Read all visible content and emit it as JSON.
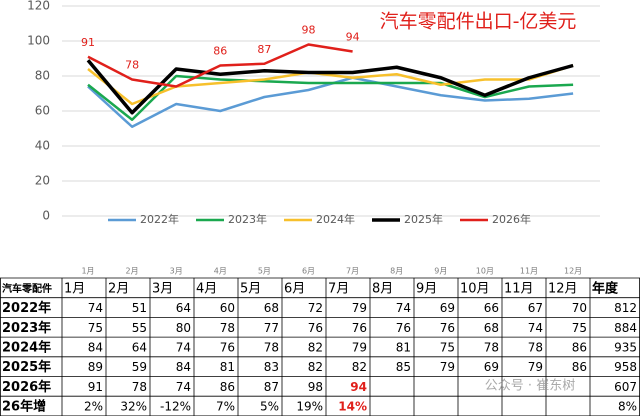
{
  "chart_data": {
    "type": "line",
    "title": "汽车零配件出口-亿美元",
    "categories": [
      "1月",
      "2月",
      "3月",
      "4月",
      "5月",
      "6月",
      "7月",
      "8月",
      "9月",
      "10月",
      "11月",
      "12月"
    ],
    "ylim": [
      0,
      120
    ],
    "yticks": [
      0,
      20,
      40,
      60,
      80,
      100,
      120
    ],
    "grid": true,
    "series": [
      {
        "name": "2022年",
        "color": "#5b9bd5",
        "values": [
          74,
          51,
          64,
          60,
          68,
          72,
          79,
          74,
          69,
          66,
          67,
          70
        ]
      },
      {
        "name": "2023年",
        "color": "#1aa84f",
        "values": [
          75,
          55,
          80,
          78,
          77,
          76,
          76,
          76,
          76,
          68,
          74,
          75
        ]
      },
      {
        "name": "2024年",
        "color": "#f7c02c",
        "values": [
          84,
          64,
          74,
          76,
          78,
          82,
          79,
          81,
          75,
          78,
          78,
          86
        ]
      },
      {
        "name": "2025年",
        "color": "#000000",
        "values": [
          89,
          59,
          84,
          81,
          83,
          82,
          82,
          85,
          79,
          69,
          79,
          86
        ]
      },
      {
        "name": "2026年",
        "color": "#e0201b",
        "values": [
          91,
          78,
          74,
          86,
          87,
          98,
          94,
          null,
          null,
          null,
          null,
          null
        ],
        "value_labels": [
          "91",
          "78",
          null,
          "86",
          "87",
          "98",
          "94",
          null,
          null,
          null,
          null,
          null
        ]
      }
    ]
  },
  "table": {
    "header": [
      "汽车零配件",
      "1月",
      "2月",
      "3月",
      "4月",
      "5月",
      "6月",
      "7月",
      "8月",
      "9月",
      "10月",
      "11月",
      "12月",
      "年度"
    ],
    "rows": [
      [
        "2022年",
        74,
        51,
        64,
        60,
        68,
        72,
        79,
        74,
        69,
        66,
        67,
        70,
        812
      ],
      [
        "2023年",
        75,
        55,
        80,
        78,
        77,
        76,
        76,
        76,
        76,
        68,
        74,
        75,
        884
      ],
      [
        "2024年",
        84,
        64,
        74,
        76,
        78,
        82,
        79,
        81,
        75,
        78,
        78,
        86,
        935
      ],
      [
        "2025年",
        89,
        59,
        84,
        81,
        83,
        82,
        82,
        85,
        79,
        69,
        79,
        86,
        958
      ],
      [
        "2026年",
        91,
        78,
        74,
        86,
        87,
        98,
        94,
        null,
        null,
        null,
        null,
        null,
        607
      ],
      [
        "26年增",
        "2%",
        "32%",
        "-12%",
        "7%",
        "5%",
        "19%",
        "14%",
        null,
        null,
        null,
        null,
        null,
        "8%"
      ]
    ]
  },
  "watermark": "公众号 · 崔东树"
}
